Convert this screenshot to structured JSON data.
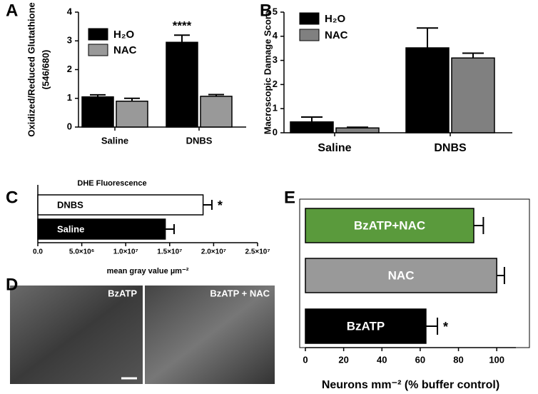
{
  "chart_data": [
    {
      "type": "bar",
      "panel": "A",
      "ylabel": [
        "Oxidized/Reduced Glutathione",
        "(546/680)"
      ],
      "categories": [
        "Saline",
        "DNBS"
      ],
      "series": [
        {
          "name": "H₂O",
          "color": "#000000",
          "values": [
            1.05,
            2.95
          ],
          "errors": [
            0.07,
            0.25
          ]
        },
        {
          "name": "NAC",
          "color": "#999999",
          "values": [
            0.9,
            1.07
          ],
          "errors": [
            0.1,
            0.06
          ]
        }
      ],
      "annotation": "****",
      "ylim": [
        0,
        4
      ],
      "yticks": [
        0,
        1,
        2,
        3,
        4
      ]
    },
    {
      "type": "bar",
      "panel": "B",
      "ylabel": [
        "Macroscopic Damage Score"
      ],
      "categories": [
        "Saline",
        "DNBS"
      ],
      "series": [
        {
          "name": "H₂O",
          "color": "#000000",
          "values": [
            0.45,
            3.52
          ],
          "errors": [
            0.2,
            0.82
          ]
        },
        {
          "name": "NAC",
          "color": "#808080",
          "values": [
            0.2,
            3.1
          ],
          "errors": [
            0.03,
            0.2
          ]
        }
      ],
      "ylim": [
        0,
        5
      ],
      "yticks": [
        0,
        1,
        2,
        3,
        4,
        5
      ]
    },
    {
      "type": "barh",
      "panel": "C",
      "title": "DHE Fluorescence",
      "xlabel": "mean gray value µm⁻²",
      "categories": [
        "DNBS",
        "Saline"
      ],
      "values": [
        18800000,
        14500000
      ],
      "errors": [
        1000000,
        1000000
      ],
      "colors": [
        "#ffffff",
        "#000000"
      ],
      "annotation": "*",
      "xlim": [
        0,
        25000000
      ],
      "xticks": [
        {
          "value": 0,
          "label": "0.0"
        },
        {
          "value": 5000000,
          "label": "5.0×10⁶"
        },
        {
          "value": 10000000,
          "label": "1.0×10⁷"
        },
        {
          "value": 15000000,
          "label": "1.5×10⁷"
        },
        {
          "value": 20000000,
          "label": "2.0×10⁷"
        },
        {
          "value": 25000000,
          "label": "2.5×10⁷"
        }
      ]
    },
    {
      "type": "barh",
      "panel": "E",
      "xlabel": "Neurons mm⁻² (% buffer control)",
      "categories": [
        "BzATP+NAC",
        "NAC",
        "BzATP"
      ],
      "values": [
        88,
        100,
        63
      ],
      "errors": [
        5,
        4,
        6
      ],
      "colors": [
        "#5a9a3c",
        "#999999",
        "#000000"
      ],
      "annotation": "*",
      "xlim": [
        0,
        110
      ],
      "xticks": [
        0,
        20,
        40,
        60,
        80,
        100
      ]
    }
  ],
  "panel_d": {
    "label": "D",
    "captions": [
      "BzATP",
      "BzATP + NAC"
    ]
  }
}
